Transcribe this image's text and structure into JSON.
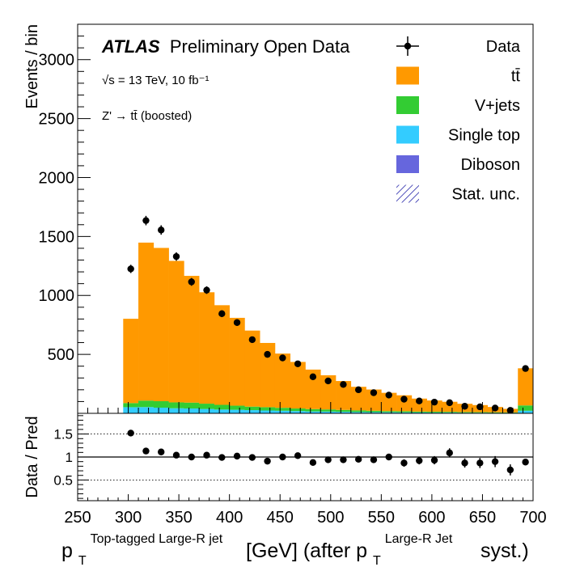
{
  "chart_data": [
    {
      "type": "bar",
      "stacked": true,
      "title": "ATLAS Preliminary Open Data",
      "title_bold_part": "ATLAS",
      "title_rest": "Preliminary Open Data",
      "annotations": [
        "√s = 13 TeV, 10 fb⁻¹",
        "Z' → tt̄ (boosted)"
      ],
      "ylabel": "Events / bin",
      "xlim": [
        250,
        700
      ],
      "ylim": [
        0,
        3300
      ],
      "yticks": [
        500,
        1000,
        1500,
        2000,
        2500,
        3000
      ],
      "ytick_labels": [
        "500",
        "1000",
        "1500",
        "2000",
        "2500",
        "3000"
      ],
      "bin_edges": [
        295,
        310,
        325,
        340,
        355,
        370,
        385,
        400,
        415,
        430,
        445,
        460,
        475,
        490,
        505,
        520,
        535,
        550,
        565,
        580,
        595,
        610,
        625,
        640,
        655,
        670,
        685,
        700
      ],
      "data_x": [
        302.5,
        317.5,
        332.5,
        347.5,
        362.5,
        377.5,
        392.5,
        407.5,
        422.5,
        437.5,
        452.5,
        467.5,
        482.5,
        497.5,
        512.5,
        527.5,
        542.5,
        557.5,
        572.5,
        587.5,
        602.5,
        617.5,
        632.5,
        647.5,
        662.5,
        677.5,
        692.5
      ],
      "data_y": [
        1225,
        1635,
        1555,
        1330,
        1115,
        1045,
        845,
        770,
        625,
        500,
        470,
        420,
        310,
        275,
        245,
        200,
        175,
        155,
        120,
        105,
        95,
        90,
        60,
        55,
        45,
        25,
        380
      ],
      "data_err": [
        35,
        40,
        40,
        36,
        33,
        32,
        29,
        28,
        25,
        22,
        22,
        20,
        18,
        17,
        16,
        14,
        13,
        12,
        11,
        10,
        10,
        9,
        8,
        7,
        7,
        5,
        19
      ],
      "series": [
        {
          "name": "tt̄",
          "color": "#ff9900",
          "values": [
            715,
            1340,
            1300,
            1200,
            1075,
            945,
            845,
            745,
            645,
            545,
            460,
            395,
            335,
            290,
            245,
            200,
            180,
            155,
            135,
            110,
            95,
            85,
            70,
            60,
            45,
            30,
            315
          ]
        },
        {
          "name": "V+jets",
          "color": "#33cc33",
          "values": [
            35,
            55,
            55,
            50,
            50,
            45,
            40,
            35,
            30,
            28,
            25,
            22,
            20,
            18,
            16,
            14,
            12,
            10,
            10,
            8,
            8,
            7,
            6,
            5,
            5,
            4,
            45
          ]
        },
        {
          "name": "Single top",
          "color": "#33ccff",
          "values": [
            50,
            50,
            45,
            40,
            38,
            35,
            30,
            28,
            25,
            22,
            20,
            18,
            15,
            14,
            12,
            10,
            9,
            8,
            7,
            6,
            5,
            5,
            4,
            4,
            3,
            3,
            20
          ]
        },
        {
          "name": "Diboson",
          "color": "#6666dd",
          "values": [
            2,
            3,
            3,
            3,
            3,
            2,
            2,
            2,
            2,
            2,
            2,
            1,
            1,
            1,
            1,
            1,
            1,
            1,
            1,
            1,
            1,
            1,
            1,
            1,
            1,
            1,
            2
          ]
        }
      ],
      "legend": {
        "placement": "top-right",
        "entries": [
          {
            "label": "Data",
            "style": "marker"
          },
          {
            "label": "tt̄",
            "style": "fill",
            "color": "#ff9900"
          },
          {
            "label": "V+jets",
            "style": "fill",
            "color": "#33cc33"
          },
          {
            "label": "Single top",
            "style": "fill",
            "color": "#33ccff"
          },
          {
            "label": "Diboson",
            "style": "fill",
            "color": "#6666dd"
          },
          {
            "label": "Stat. unc.",
            "style": "hatch",
            "color": "#1a1aa6"
          }
        ]
      }
    },
    {
      "type": "scatter",
      "ylabel": "Data / Pred",
      "ylim": [
        0.05,
        1.95
      ],
      "yticks": [
        0.5,
        1,
        1.5
      ],
      "ytick_labels": [
        "0.5",
        "1",
        "1.5"
      ],
      "reference_lines": [
        0.5,
        1,
        1.5
      ],
      "xlim": [
        250,
        700
      ],
      "xticks": [
        250,
        300,
        350,
        400,
        450,
        500,
        550,
        600,
        650,
        700
      ],
      "xtick_labels": [
        "250",
        "300",
        "350",
        "400",
        "450",
        "500",
        "550",
        "600",
        "650",
        "700"
      ],
      "x": [
        302.5,
        317.5,
        332.5,
        347.5,
        362.5,
        377.5,
        392.5,
        407.5,
        422.5,
        437.5,
        452.5,
        467.5,
        482.5,
        497.5,
        512.5,
        527.5,
        542.5,
        557.5,
        572.5,
        587.5,
        602.5,
        617.5,
        632.5,
        647.5,
        662.5,
        677.5,
        692.5
      ],
      "y": [
        1.52,
        1.13,
        1.11,
        1.04,
        1.0,
        1.04,
        0.99,
        1.02,
        0.99,
        0.91,
        1.0,
        1.03,
        0.88,
        0.94,
        0.94,
        0.95,
        0.94,
        1.0,
        0.87,
        0.92,
        0.93,
        1.09,
        0.87,
        0.87,
        0.9,
        0.72,
        0.89
      ],
      "yerr": [
        0.05,
        0.04,
        0.04,
        0.04,
        0.04,
        0.04,
        0.04,
        0.04,
        0.04,
        0.05,
        0.05,
        0.05,
        0.06,
        0.06,
        0.06,
        0.06,
        0.07,
        0.07,
        0.08,
        0.08,
        0.09,
        0.1,
        0.1,
        0.11,
        0.12,
        0.12,
        0.05
      ],
      "xlabel_main": "p",
      "xlabel_sub1": "T",
      "xlabel_sup1": "Top-tagged Large-R jet",
      "xlabel_mid": "[GeV] (after p",
      "xlabel_sub2": "T",
      "xlabel_sup2": "Large-R Jet",
      "xlabel_end": "syst.)"
    }
  ]
}
